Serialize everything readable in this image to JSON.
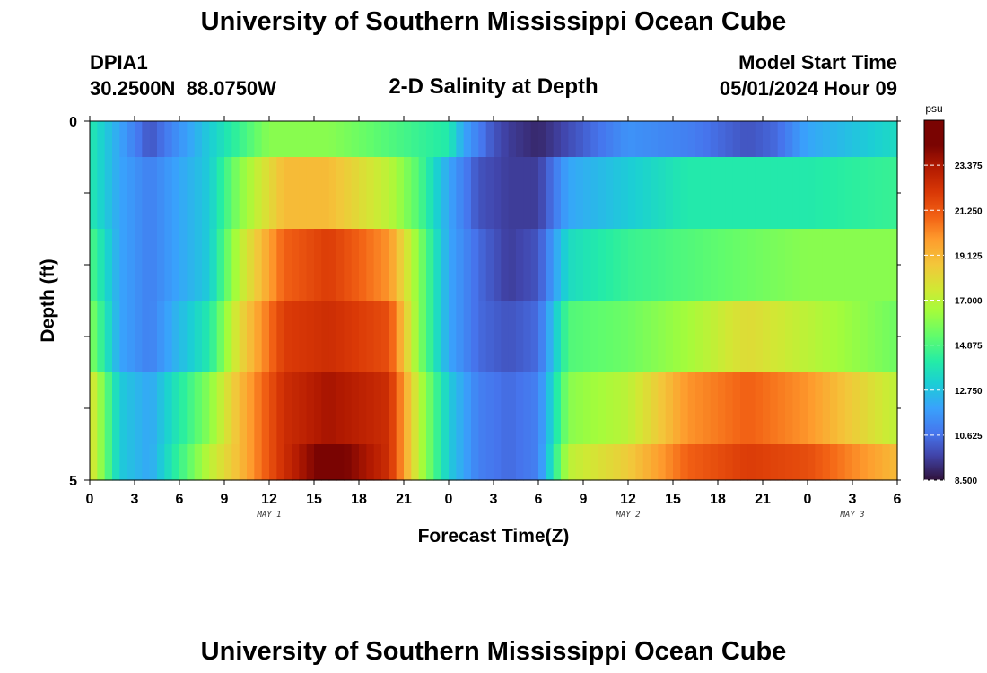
{
  "header": {
    "title": "University of Southern Mississippi Ocean Cube",
    "station_id": "DPIA1",
    "station_coords": "30.2500N  88.0750W",
    "plot_title": "2-D Salinity at Depth",
    "model_start_label": "Model Start Time",
    "model_start_value": "05/01/2024 Hour 09"
  },
  "footer": {
    "title": "University of Southern Mississippi Ocean Cube"
  },
  "chart_data": {
    "type": "heatmap",
    "title": "2-D Salinity at Depth",
    "xlabel": "Forecast Time(Z)",
    "ylabel": "Depth (ft)",
    "x_tick_labels": [
      "0",
      "3",
      "6",
      "9",
      "12",
      "15",
      "18",
      "21",
      "0",
      "3",
      "6",
      "9",
      "12",
      "15",
      "18",
      "21",
      "0",
      "3",
      "6"
    ],
    "x_range_hours": [
      0,
      54
    ],
    "date_labels": [
      {
        "text": "MAY 1",
        "hour": 12
      },
      {
        "text": "MAY 2",
        "hour": 36
      },
      {
        "text": "MAY 3",
        "hour": 51
      }
    ],
    "y_tick_labels": [
      "0",
      "5"
    ],
    "y_range": [
      0,
      5
    ],
    "depth_levels": [
      0,
      1,
      2,
      3,
      4,
      5
    ],
    "colorbar": {
      "unit": "psu",
      "min": 8.5,
      "max": 25.5,
      "tick_labels": [
        "23.375",
        "21.250",
        "19.125",
        "17.000",
        "14.875",
        "12.750",
        "10.625",
        "8.500"
      ],
      "tick_values": [
        23.375,
        21.25,
        19.125,
        17.0,
        14.875,
        12.75,
        10.625,
        8.5
      ]
    },
    "row_keyframes": [
      {
        "depth": 0,
        "hours": [
          0,
          2,
          4,
          8,
          12,
          16,
          20,
          24,
          25,
          27,
          28,
          30,
          36,
          40,
          44,
          46,
          48,
          54
        ],
        "values": [
          14,
          12,
          10,
          13,
          16,
          16,
          15,
          14,
          12,
          10,
          9.5,
          9,
          11.5,
          11,
          10,
          10.5,
          12,
          13.5
        ]
      },
      {
        "depth": 1,
        "hours": [
          0,
          2,
          4,
          8,
          10,
          13,
          16,
          20,
          22,
          24,
          26,
          28,
          30,
          32,
          36,
          40,
          44,
          48,
          54
        ],
        "values": [
          14,
          12,
          11,
          13,
          16,
          19,
          19,
          17,
          15,
          12,
          10,
          9.5,
          9.5,
          12,
          13,
          14,
          14,
          14,
          14.5
        ]
      },
      {
        "depth": 2,
        "hours": [
          0,
          2,
          4,
          8,
          10,
          13,
          16,
          20,
          22,
          24,
          26,
          28,
          30,
          32,
          36,
          40,
          44,
          48,
          54
        ],
        "values": [
          15,
          12,
          11,
          13,
          17,
          21,
          22,
          20,
          16,
          12,
          10.5,
          9.5,
          10,
          13.5,
          14.5,
          15,
          15.5,
          16,
          16
        ]
      },
      {
        "depth": 3,
        "hours": [
          0,
          2,
          4,
          8,
          10,
          13,
          16,
          20,
          22,
          24,
          26,
          28,
          30,
          32,
          36,
          40,
          44,
          48,
          54
        ],
        "values": [
          16,
          12,
          11,
          14,
          18,
          22,
          22.5,
          21.5,
          16,
          12,
          10.5,
          10,
          10.5,
          15,
          15.5,
          16.5,
          18,
          17,
          15.5
        ]
      },
      {
        "depth": 4,
        "hours": [
          0,
          2,
          4,
          8,
          10,
          13,
          16,
          20,
          22,
          24,
          26,
          28,
          30,
          32,
          36,
          40,
          44,
          48,
          54
        ],
        "values": [
          18,
          13,
          12,
          16,
          19,
          22.5,
          23.5,
          22.5,
          17,
          13,
          11,
          10.5,
          11,
          16,
          17,
          20,
          21,
          20,
          17
        ]
      },
      {
        "depth": 5,
        "hours": [
          0,
          2,
          4,
          8,
          10,
          13,
          16,
          20,
          22,
          24,
          26,
          28,
          30,
          32,
          36,
          40,
          44,
          48,
          54
        ],
        "values": [
          18,
          13,
          12,
          17,
          19,
          22.5,
          25,
          22.5,
          17,
          13,
          11,
          10.5,
          11,
          17,
          18.5,
          21,
          22,
          21.5,
          19
        ]
      }
    ]
  }
}
